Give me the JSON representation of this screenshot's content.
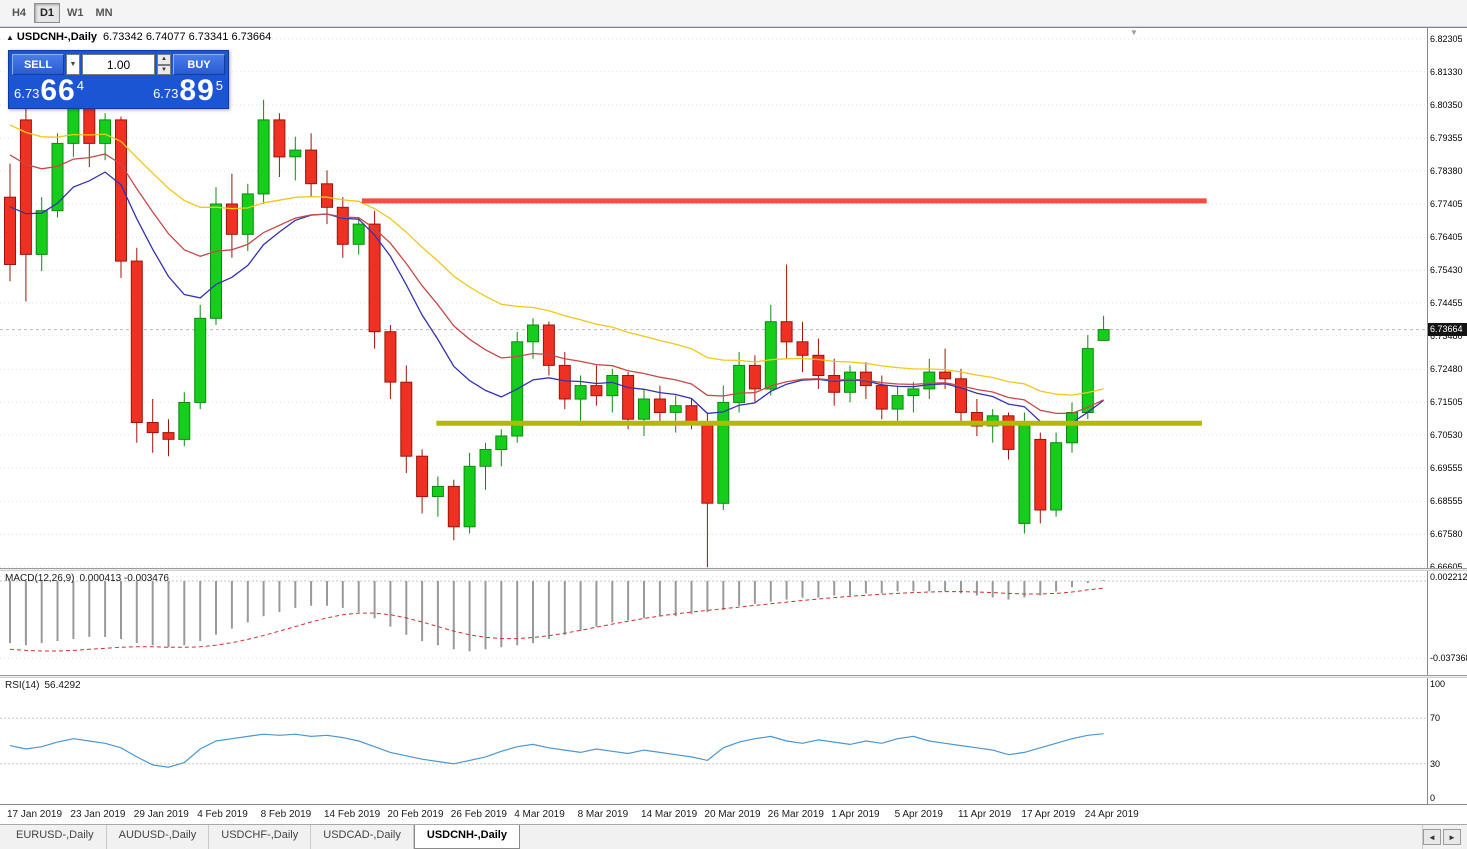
{
  "toolbar": {
    "timeframes": [
      {
        "label": "H4",
        "active": false
      },
      {
        "label": "D1",
        "active": true
      },
      {
        "label": "W1",
        "active": false
      },
      {
        "label": "MN",
        "active": false
      }
    ]
  },
  "chart_header": {
    "expand_icon": "▲",
    "symbol": "USDCNH-,Daily",
    "ohlc": "6.73342 6.74077 6.73341 6.73664",
    "shift_marker": "▼"
  },
  "trade_panel": {
    "sell_label": "SELL",
    "buy_label": "BUY",
    "volume": "1.00",
    "dropdown_icon": "▼",
    "spin_up_icon": "▲",
    "spin_down_icon": "▼",
    "sell_price": {
      "prefix": "6.73",
      "big": "66",
      "sup": "4"
    },
    "buy_price": {
      "prefix": "6.73",
      "big": "89",
      "sup": "5"
    }
  },
  "indicator_labels": {
    "macd": {
      "name": "MACD(12,26,9)",
      "values": "0.000413 -0.003476"
    },
    "rsi": {
      "name": "RSI(14)",
      "value": "56.4292"
    }
  },
  "tabs": {
    "items": [
      {
        "label": "EURUSD-,Daily",
        "active": false
      },
      {
        "label": "AUDUSD-,Daily",
        "active": false
      },
      {
        "label": "USDCHF-,Daily",
        "active": false
      },
      {
        "label": "USDCAD-,Daily",
        "active": false
      },
      {
        "label": "USDCNH-,Daily",
        "active": true
      }
    ],
    "prev_icon": "◄",
    "next_icon": "►"
  },
  "chart_data": {
    "type": "candlestick",
    "title": "USDCNH-,Daily",
    "ylim": [
      6.66575,
      6.82632
    ],
    "current_price": "6.73664",
    "price_ticks": [
      "6.82305",
      "6.81330",
      "6.80350",
      "6.79355",
      "6.78380",
      "6.77405",
      "6.76405",
      "6.75430",
      "6.74455",
      "6.73480",
      "6.72480",
      "6.71505",
      "6.70530",
      "6.69555",
      "6.68555",
      "6.67580",
      "6.66605"
    ],
    "date_labels": [
      {
        "label": "17 Jan 2019",
        "index": 0
      },
      {
        "label": "23 Jan 2019",
        "index": 4
      },
      {
        "label": "29 Jan 2019",
        "index": 8
      },
      {
        "label": "4 Feb 2019",
        "index": 12
      },
      {
        "label": "8 Feb 2019",
        "index": 16
      },
      {
        "label": "14 Feb 2019",
        "index": 20
      },
      {
        "label": "20 Feb 2019",
        "index": 24
      },
      {
        "label": "26 Feb 2019",
        "index": 28
      },
      {
        "label": "4 Mar 2019",
        "index": 32
      },
      {
        "label": "8 Mar 2019",
        "index": 36
      },
      {
        "label": "14 Mar 2019",
        "index": 40
      },
      {
        "label": "20 Mar 2019",
        "index": 44
      },
      {
        "label": "26 Mar 2019",
        "index": 48
      },
      {
        "label": "1 Apr 2019",
        "index": 52
      },
      {
        "label": "5 Apr 2019",
        "index": 56
      },
      {
        "label": "11 Apr 2019",
        "index": 60
      },
      {
        "label": "17 Apr 2019",
        "index": 64
      },
      {
        "label": "24 Apr 2019",
        "index": 68
      }
    ],
    "candles": [
      [
        6.776,
        6.786,
        6.751,
        6.756
      ],
      [
        6.799,
        6.806,
        6.745,
        6.759
      ],
      [
        6.759,
        6.776,
        6.754,
        6.772
      ],
      [
        6.772,
        6.795,
        6.77,
        6.792
      ],
      [
        6.792,
        6.813,
        6.788,
        6.808
      ],
      [
        6.808,
        6.809,
        6.785,
        6.792
      ],
      [
        6.792,
        6.801,
        6.787,
        6.799
      ],
      [
        6.799,
        6.8,
        6.752,
        6.757
      ],
      [
        6.757,
        6.761,
        6.703,
        6.709
      ],
      [
        6.709,
        6.716,
        6.7,
        6.706
      ],
      [
        6.706,
        6.71,
        6.699,
        6.704
      ],
      [
        6.704,
        6.718,
        6.702,
        6.715
      ],
      [
        6.715,
        6.744,
        6.713,
        6.74
      ],
      [
        6.74,
        6.779,
        6.738,
        6.774
      ],
      [
        6.774,
        6.783,
        6.758,
        6.765
      ],
      [
        6.765,
        6.78,
        6.76,
        6.777
      ],
      [
        6.777,
        6.805,
        6.774,
        6.799
      ],
      [
        6.799,
        6.801,
        6.782,
        6.788
      ],
      [
        6.788,
        6.794,
        6.781,
        6.79
      ],
      [
        6.79,
        6.795,
        6.776,
        6.78
      ],
      [
        6.78,
        6.784,
        6.768,
        6.773
      ],
      [
        6.773,
        6.776,
        6.758,
        6.762
      ],
      [
        6.762,
        6.77,
        6.759,
        6.768
      ],
      [
        6.768,
        6.772,
        6.731,
        6.736
      ],
      [
        6.736,
        6.738,
        6.716,
        6.721
      ],
      [
        6.721,
        6.726,
        6.694,
        6.699
      ],
      [
        6.699,
        6.701,
        6.682,
        6.687
      ],
      [
        6.687,
        6.693,
        6.681,
        6.69
      ],
      [
        6.69,
        6.692,
        6.674,
        6.678
      ],
      [
        6.678,
        6.7,
        6.676,
        6.696
      ],
      [
        6.696,
        6.703,
        6.689,
        6.701
      ],
      [
        6.701,
        6.707,
        6.696,
        6.705
      ],
      [
        6.705,
        6.736,
        6.703,
        6.733
      ],
      [
        6.733,
        6.74,
        6.728,
        6.738
      ],
      [
        6.738,
        6.739,
        6.723,
        6.726
      ],
      [
        6.726,
        6.73,
        6.713,
        6.716
      ],
      [
        6.716,
        6.723,
        6.708,
        6.72
      ],
      [
        6.72,
        6.726,
        6.714,
        6.717
      ],
      [
        6.717,
        6.725,
        6.712,
        6.723
      ],
      [
        6.723,
        6.724,
        6.707,
        6.71
      ],
      [
        6.71,
        6.719,
        6.705,
        6.716
      ],
      [
        6.716,
        6.72,
        6.709,
        6.712
      ],
      [
        6.712,
        6.717,
        6.706,
        6.714
      ],
      [
        6.714,
        6.716,
        6.707,
        6.709
      ],
      [
        6.709,
        6.712,
        6.666,
        6.685
      ],
      [
        6.685,
        6.72,
        6.683,
        6.715
      ],
      [
        6.715,
        6.73,
        6.712,
        6.726
      ],
      [
        6.726,
        6.729,
        6.715,
        6.719
      ],
      [
        6.719,
        6.744,
        6.717,
        6.739
      ],
      [
        6.739,
        6.756,
        6.728,
        6.733
      ],
      [
        6.733,
        6.739,
        6.724,
        6.729
      ],
      [
        6.729,
        6.734,
        6.719,
        6.723
      ],
      [
        6.723,
        6.728,
        6.714,
        6.718
      ],
      [
        6.718,
        6.726,
        6.715,
        6.724
      ],
      [
        6.724,
        6.727,
        6.716,
        6.72
      ],
      [
        6.72,
        6.723,
        6.71,
        6.713
      ],
      [
        6.713,
        6.72,
        6.709,
        6.717
      ],
      [
        6.717,
        6.721,
        6.712,
        6.719
      ],
      [
        6.719,
        6.728,
        6.716,
        6.724
      ],
      [
        6.724,
        6.731,
        6.719,
        6.722
      ],
      [
        6.722,
        6.725,
        6.709,
        6.712
      ],
      [
        6.712,
        6.716,
        6.705,
        6.708
      ],
      [
        6.708,
        6.713,
        6.703,
        6.711
      ],
      [
        6.711,
        6.712,
        6.698,
        6.701
      ],
      [
        6.679,
        6.712,
        6.676,
        6.709
      ],
      [
        6.704,
        6.706,
        6.679,
        6.683
      ],
      [
        6.683,
        6.706,
        6.681,
        6.703
      ],
      [
        6.703,
        6.715,
        6.7,
        6.712
      ],
      [
        6.712,
        6.735,
        6.71,
        6.731
      ],
      [
        6.73342,
        6.74077,
        6.73341,
        6.73664
      ]
    ],
    "overlays": [
      {
        "name": "ma-fast-line",
        "period": 13,
        "seed": 6.776,
        "color": "#3333b0"
      },
      {
        "name": "ma-mid-line",
        "period": 20,
        "seed": 6.792,
        "color": "#c84848"
      },
      {
        "name": "ma-slow-line",
        "period": 34,
        "seed": 6.8,
        "color": "#f2c71b"
      }
    ],
    "levels": [
      {
        "name": "resistance-line",
        "price": 6.7749,
        "from": 22.2,
        "to": 75.5,
        "color": "#fb4a42",
        "width": 5
      },
      {
        "name": "support-line",
        "price": 6.7088,
        "from": 26.9,
        "to": 75.2,
        "color": "#b3b800",
        "width": 5
      }
    ],
    "macd": {
      "ylim": [
        -0.0454,
        0.00483
      ],
      "axis_ticks": [
        "0.002212",
        "-0.037368"
      ],
      "colors": {
        "histogram": "#999999",
        "signal": "#cc3333"
      },
      "histogram": [
        -0.03,
        -0.031,
        -0.03,
        -0.029,
        -0.028,
        -0.027,
        -0.027,
        -0.028,
        -0.03,
        -0.031,
        -0.032,
        -0.031,
        -0.029,
        -0.026,
        -0.023,
        -0.02,
        -0.017,
        -0.015,
        -0.013,
        -0.012,
        -0.012,
        -0.013,
        -0.015,
        -0.018,
        -0.022,
        -0.026,
        -0.029,
        -0.031,
        -0.033,
        -0.034,
        -0.033,
        -0.032,
        -0.031,
        -0.03,
        -0.028,
        -0.026,
        -0.024,
        -0.022,
        -0.02,
        -0.019,
        -0.018,
        -0.017,
        -0.017,
        -0.016,
        -0.015,
        -0.014,
        -0.012,
        -0.011,
        -0.01,
        -0.009,
        -0.008,
        -0.008,
        -0.007,
        -0.007,
        -0.006,
        -0.006,
        -0.005,
        -0.005,
        -0.005,
        -0.005,
        -0.006,
        -0.007,
        -0.008,
        -0.009,
        -0.008,
        -0.007,
        -0.005,
        -0.003,
        -0.001,
        0.000413
      ],
      "signal": [
        -0.033,
        -0.0335,
        -0.0338,
        -0.0338,
        -0.0335,
        -0.033,
        -0.0325,
        -0.032,
        -0.0318,
        -0.0318,
        -0.032,
        -0.032,
        -0.0318,
        -0.031,
        -0.0298,
        -0.0282,
        -0.0263,
        -0.0242,
        -0.022,
        -0.0198,
        -0.0178,
        -0.0163,
        -0.0155,
        -0.0155,
        -0.0163,
        -0.0178,
        -0.0198,
        -0.022,
        -0.0242,
        -0.026,
        -0.0272,
        -0.0278,
        -0.0278,
        -0.0273,
        -0.0264,
        -0.0252,
        -0.0238,
        -0.0223,
        -0.0208,
        -0.0194,
        -0.0181,
        -0.0169,
        -0.0159,
        -0.015,
        -0.0142,
        -0.0134,
        -0.0126,
        -0.0118,
        -0.011,
        -0.0102,
        -0.0094,
        -0.0087,
        -0.008,
        -0.0074,
        -0.0069,
        -0.0064,
        -0.006,
        -0.0056,
        -0.0053,
        -0.0051,
        -0.0051,
        -0.0053,
        -0.0056,
        -0.006,
        -0.0063,
        -0.0063,
        -0.006,
        -0.0053,
        -0.0043,
        -0.003476
      ]
    },
    "rsi": {
      "ylim": [
        -5.3,
        105.3
      ],
      "axis_ticks": [
        "100",
        "70",
        "30",
        "0"
      ],
      "levels": [
        70,
        30
      ],
      "color": "#4b97d2",
      "values": [
        46,
        43,
        45,
        49,
        52,
        50,
        48,
        44,
        36,
        29,
        27,
        31,
        43,
        50,
        52,
        54,
        56,
        55,
        56,
        54,
        55,
        53,
        50,
        45,
        40,
        37,
        34,
        32,
        30,
        33,
        36,
        41,
        45,
        47,
        44,
        42,
        40,
        43,
        41,
        39,
        42,
        40,
        38,
        36,
        33,
        44,
        49,
        52,
        54,
        50,
        48,
        51,
        49,
        47,
        50,
        48,
        52,
        54,
        50,
        48,
        46,
        44,
        42,
        38,
        40,
        44,
        48,
        52,
        55,
        56.4
      ]
    },
    "colors": {
      "bull": "#17cd1c",
      "bull_border": "#0c8a10",
      "bear": "#ef3124",
      "bear_border": "#9c1508",
      "grid": "#e2e2e2",
      "bid_line": "#b8b8b8"
    }
  }
}
